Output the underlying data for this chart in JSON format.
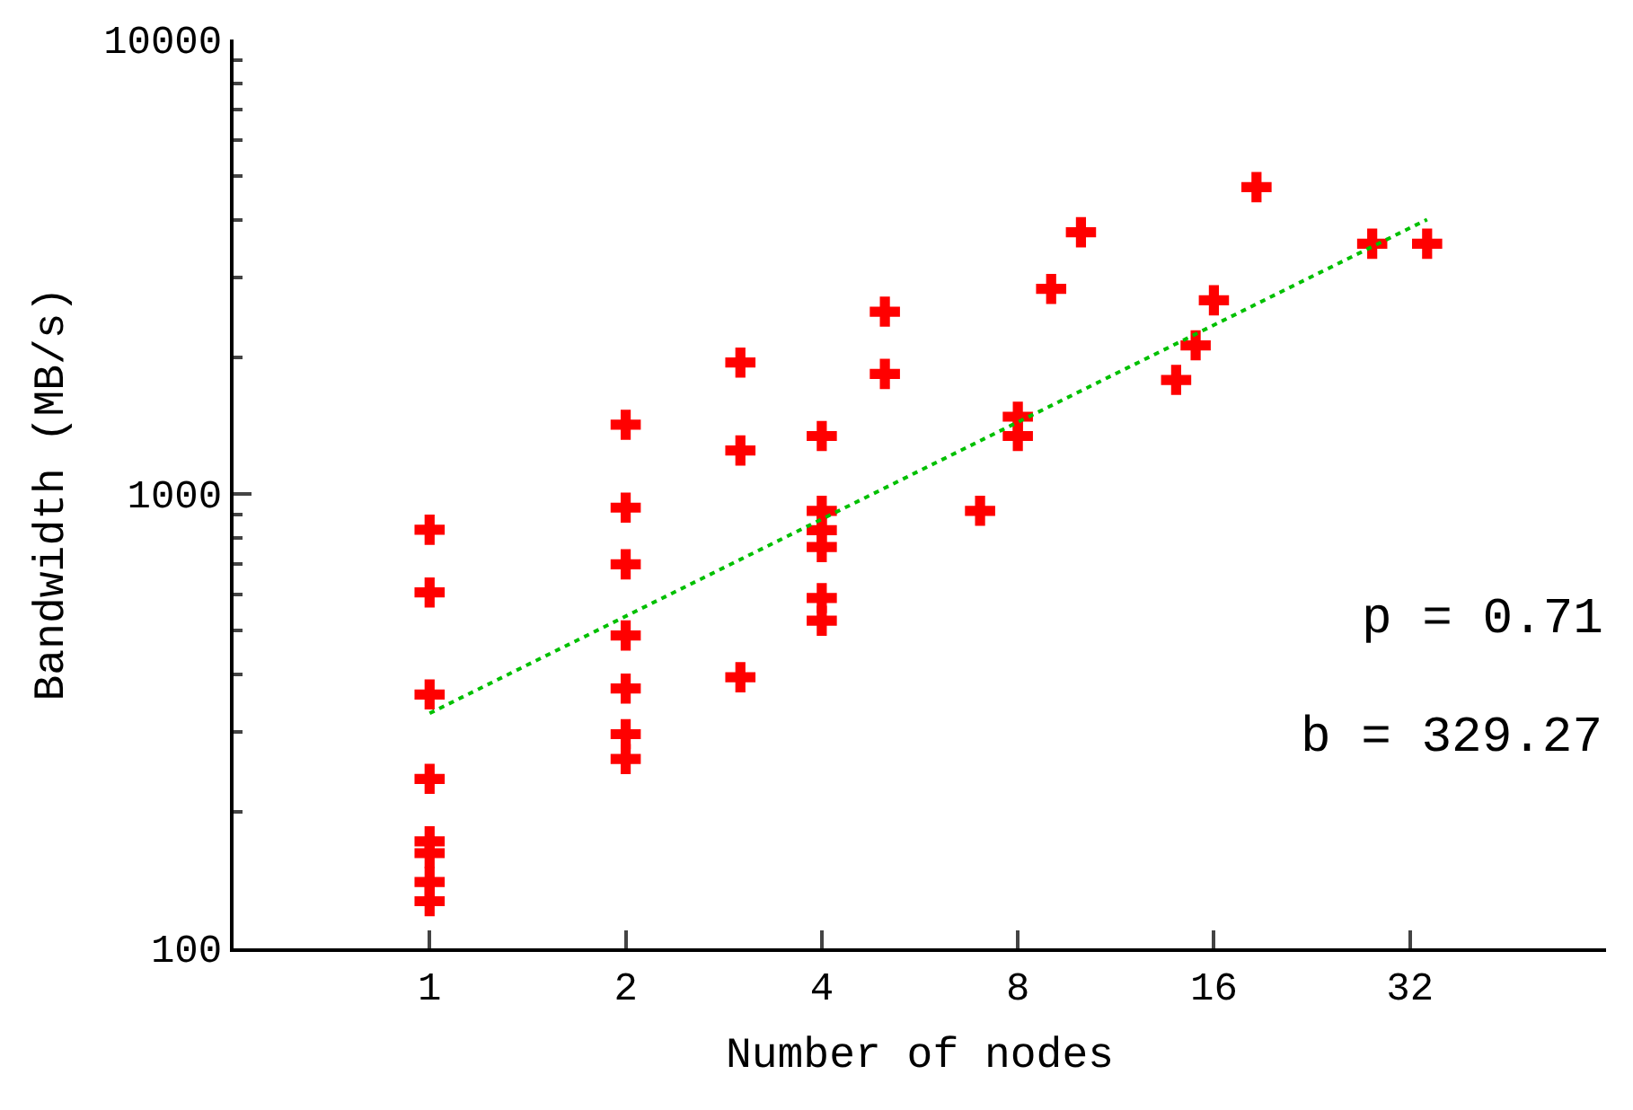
{
  "chart_data": {
    "type": "scatter",
    "xlabel": "Number of nodes",
    "ylabel": "Bandwidth (MB/s)",
    "log": "xy",
    "xlim": [
      0.5,
      64
    ],
    "xticks": [
      1,
      2,
      4,
      8,
      16,
      32
    ],
    "ylim": [
      100,
      10000
    ],
    "yticks": [
      100,
      1000,
      10000
    ],
    "legend": false,
    "marker": "cross",
    "series": [
      {
        "color": "#ff0000",
        "x": [
          1,
          1,
          1,
          1,
          1,
          1,
          1,
          1,
          2,
          2,
          2,
          2,
          2,
          2,
          2,
          3,
          3,
          3,
          4,
          4,
          4,
          4,
          4,
          4,
          5,
          5,
          7,
          8,
          8,
          9,
          10,
          14,
          15,
          16,
          18.6,
          28,
          34
        ],
        "values": [
          834,
          607,
          362,
          236,
          172,
          162,
          140,
          127,
          1420,
          933,
          700,
          488,
          373,
          296,
          261,
          1946,
          1246,
          395,
          1341,
          918,
          832,
          764,
          590,
          526,
          2518,
          1837,
          918,
          1479,
          1341,
          2826,
          3766,
          1782,
          2123,
          2668,
          4732,
          3554,
          3554
        ]
      },
      {
        "type": "line",
        "color": "#00c000",
        "marker": "none",
        "line_style": "dotted",
        "x": [
          1,
          34
        ],
        "values": [
          329,
          4017
        ]
      }
    ],
    "annotations": [
      "p = 0.71",
      "b = 329.27"
    ]
  }
}
